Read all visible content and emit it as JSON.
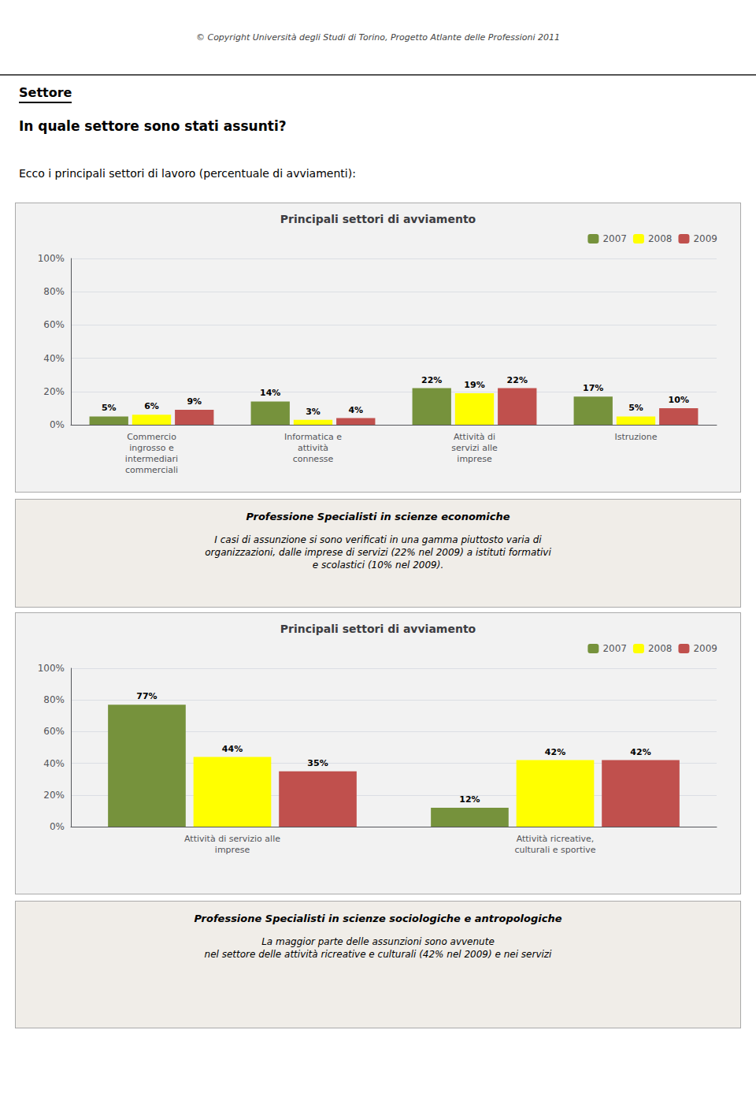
{
  "chart_data": [
    {
      "type": "bar",
      "title": "Principali settori di avviamento",
      "annotations": [
        "© Copyright Università degli Studi di Torino, Progetto Atlante delle Professioni 2011",
        "Settore",
        "In quale settore sono stati assunti?",
        "Ecco i principali settori di lavoro (percentuale di avviamenti):",
        "Professione Specialisti in scienze economiche",
        "I casi di assunzione si sono verificati in una gamma piuttosto varia di\norganizzazioni, dalle imprese di servizi (22% nel 2009) a istituti formativi\ne scolastici (10% nel 2009)."
      ],
      "categories": [
        "Commercio\ningrosso e\nintermediari\ncommerciali",
        "Informatica e\nattività\nconnesse",
        "Attività di\nservizi alle\nimprese",
        "Istruzione"
      ],
      "series": [
        {
          "name": "2007",
          "color": "#76923C",
          "values": [
            5,
            14,
            22,
            17
          ],
          "value_labels": [
            "5%",
            "14%",
            "22%",
            "17%"
          ]
        },
        {
          "name": "2008",
          "color": "#FFFF00",
          "values": [
            6,
            3,
            19,
            5
          ],
          "value_labels": [
            "6%",
            "3%",
            "19%",
            "5%"
          ]
        },
        {
          "name": "2009",
          "color": "#C0504D",
          "values": [
            9,
            4,
            22,
            10
          ],
          "value_labels": [
            "9%",
            "4%",
            "22%",
            "10%"
          ]
        }
      ],
      "ylim": [
        0,
        100
      ],
      "yticks": [
        {
          "value": 0,
          "label": "0%"
        },
        {
          "value": 20,
          "label": "20%"
        },
        {
          "value": 40,
          "label": "40%"
        },
        {
          "value": 60,
          "label": "60%"
        },
        {
          "value": 80,
          "label": "80%"
        },
        {
          "value": 100,
          "label": "100%"
        }
      ],
      "grid": true,
      "legend": "upper right",
      "data_labels": true
    },
    {
      "type": "bar",
      "title": "Principali settori di avviamento",
      "annotations": [
        "Professione Specialisti in scienze sociologiche e antropologiche",
        "La maggior parte delle assunzioni sono avvenute\nnel settore delle attività ricreative e culturali (42% nel 2009) e nei servizi"
      ],
      "categories": [
        "Attività di servizio alle\nimprese",
        "Attività ricreative,\nculturali e sportive"
      ],
      "series": [
        {
          "name": "2007",
          "color": "#76923C",
          "values": [
            77,
            12
          ],
          "value_labels": [
            "77%",
            "12%"
          ]
        },
        {
          "name": "2008",
          "color": "#FFFF00",
          "values": [
            44,
            42
          ],
          "value_labels": [
            "44%",
            "42%"
          ]
        },
        {
          "name": "2009",
          "color": "#C0504D",
          "values": [
            35,
            42
          ],
          "value_labels": [
            "35%",
            "42%"
          ]
        }
      ],
      "ylim": [
        0,
        100
      ],
      "yticks": [
        {
          "value": 0,
          "label": "0%"
        },
        {
          "value": 20,
          "label": "20%"
        },
        {
          "value": 40,
          "label": "40%"
        },
        {
          "value": 60,
          "label": "60%"
        },
        {
          "value": 80,
          "label": "80%"
        },
        {
          "value": 100,
          "label": "100%"
        }
      ],
      "grid": true,
      "legend": "upper right",
      "data_labels": true
    }
  ]
}
